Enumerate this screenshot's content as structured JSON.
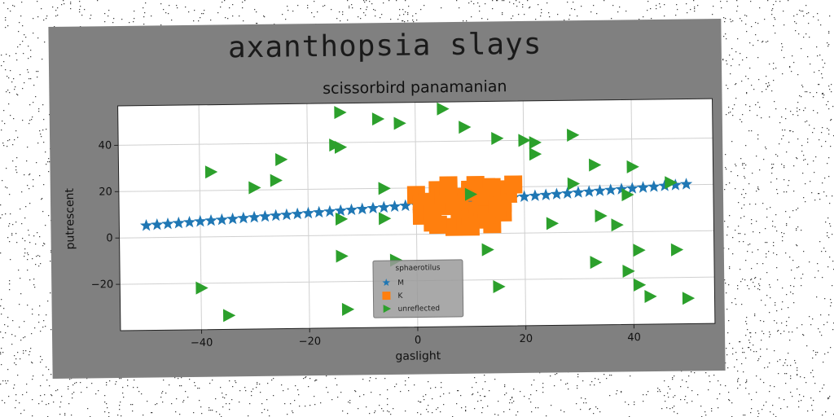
{
  "suptitle": "axanthopsia slays",
  "chart_data": {
    "type": "scatter",
    "title": "scissorbird panamanian",
    "xlabel": "gaslight",
    "ylabel": "putrescent",
    "xlim": [
      -55,
      55
    ],
    "ylim": [
      -40,
      57
    ],
    "xticks": [
      -40,
      -20,
      0,
      20,
      40
    ],
    "yticks": [
      -20,
      0,
      20,
      40
    ],
    "grid": true,
    "legend": {
      "title": "sphaerotilus",
      "placement": "lower-center"
    },
    "colors": {
      "figure_bg": "#808080",
      "axes_bg": "#ffffff",
      "M": "#1f77b4",
      "K": "#ff7f0e",
      "unreflected": "#2ca02c"
    },
    "series": [
      {
        "name": "M",
        "marker": "star",
        "x": [
          -50,
          -48,
          -46,
          -44,
          -42,
          -40,
          -38,
          -36,
          -34,
          -32,
          -30,
          -28,
          -26,
          -24,
          -22,
          -20,
          -18,
          -16,
          -14,
          -12,
          -10,
          -8,
          -6,
          -4,
          -2,
          0,
          2,
          4,
          6,
          8,
          10,
          12,
          14,
          16,
          18,
          20,
          22,
          24,
          26,
          28,
          30,
          32,
          34,
          36,
          38,
          40,
          42,
          44,
          46,
          48,
          50
        ],
        "y": [
          5.2,
          5.5,
          5.8,
          6.1,
          6.4,
          6.7,
          7.0,
          7.3,
          7.6,
          7.9,
          8.2,
          8.5,
          8.8,
          9.1,
          9.4,
          9.7,
          10.0,
          10.3,
          10.6,
          10.9,
          11.2,
          11.5,
          11.8,
          12.1,
          12.4,
          12.7,
          13.0,
          13.3,
          13.6,
          13.9,
          14.2,
          14.5,
          14.8,
          15.1,
          15.4,
          15.7,
          16.0,
          16.3,
          16.6,
          16.9,
          17.2,
          17.5,
          17.8,
          18.1,
          18.4,
          18.7,
          19.0,
          19.3,
          19.6,
          19.9,
          20.2
        ]
      },
      {
        "name": "K",
        "marker": "square",
        "x": [
          0,
          1,
          2,
          3,
          4,
          5,
          6,
          7,
          8,
          9,
          10,
          11,
          12,
          13,
          14,
          15,
          16,
          17,
          2,
          5,
          8,
          11,
          14,
          17,
          4,
          7,
          10,
          13,
          16,
          6,
          9,
          12,
          15,
          1,
          3,
          18,
          10,
          14
        ],
        "y": [
          17,
          8,
          14,
          5,
          19,
          12,
          21,
          3,
          16,
          10,
          18,
          6,
          13,
          20,
          4,
          15,
          9,
          19,
          11,
          16,
          7,
          21,
          12,
          17,
          4,
          14,
          19,
          8,
          13,
          20,
          5,
          16,
          11,
          13,
          9,
          21,
          3,
          20
        ]
      },
      {
        "name": "unreflected",
        "marker": "triangle-right",
        "x": [
          -14,
          -7,
          -3,
          5,
          9,
          15,
          20,
          22,
          22,
          29,
          33,
          -38,
          -25,
          -15,
          -14,
          -30,
          -26,
          -6,
          10,
          29,
          40,
          47,
          -14,
          -6,
          25,
          34,
          37,
          39,
          48,
          -14,
          -4,
          13,
          33,
          41,
          -40,
          15,
          39,
          41,
          -35,
          -13,
          43,
          50
        ],
        "y": [
          53,
          50,
          48,
          54,
          46,
          41,
          40,
          39,
          34,
          42,
          29,
          28,
          33,
          39,
          38,
          21,
          24,
          20,
          17,
          21,
          28,
          21,
          7,
          7,
          4,
          7,
          3,
          16,
          -8,
          -9,
          -11,
          -7,
          -13,
          -8,
          -22,
          -23,
          -17,
          -23,
          -34,
          -32,
          -28,
          -29
        ]
      }
    ]
  }
}
